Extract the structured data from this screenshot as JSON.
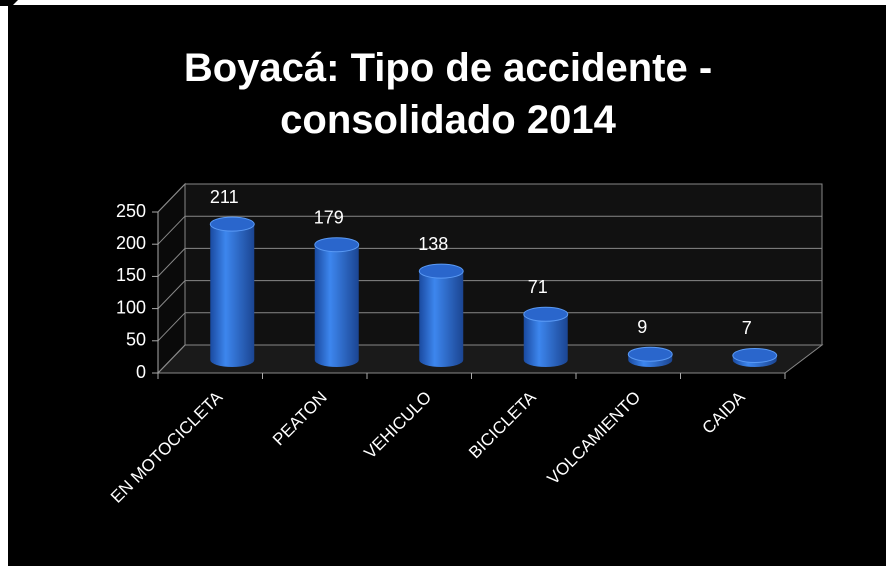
{
  "chart_data": {
    "type": "bar",
    "title": "Boyacá: Tipo de accidente - consolidado 2014",
    "categories": [
      "EN MOTOCICLETA",
      "PEATON",
      "VEHICULO",
      "BICICLETA",
      "VOLCAMIENTO",
      "CAIDA"
    ],
    "values": [
      211,
      179,
      138,
      71,
      9,
      7
    ],
    "color": "#2a66cc",
    "ylim": [
      0,
      250
    ],
    "yticks": [
      0,
      50,
      100,
      150,
      200,
      250
    ],
    "grid": true
  }
}
